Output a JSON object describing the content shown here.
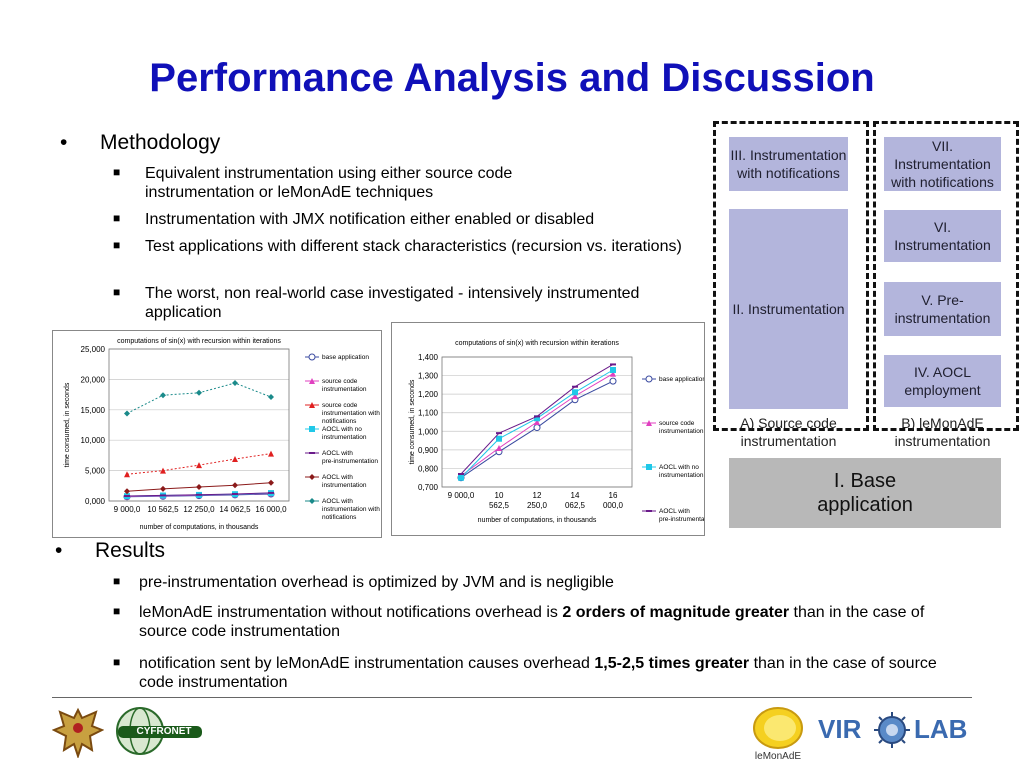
{
  "title": "Performance Analysis and Discussion",
  "methodology": {
    "heading": "Methodology",
    "items": [
      "Equivalent instrumentation using either source code instrumentation or leMonAdE techniques",
      "Instrumentation with JMX notification either enabled or disabled",
      "Test applications with different stack characteristics (recursion vs. iterations)",
      "The worst, non real-world case investigated - intensively instrumented application"
    ]
  },
  "results": {
    "heading": "Results",
    "item1": "pre-instrumentation overhead is optimized by JVM and is negligible",
    "item2_pre": "leMonAdE instrumentation without notifications overhead is ",
    "item2_bold": "2 orders of magnitude greater",
    "item2_post": " than in the case of source code instrumentation",
    "item3_pre": "notification sent by leMonAdE instrumentation causes overhead ",
    "item3_bold": "1,5-2,5 times greater",
    "item3_post": " than in the case of source code instrumentation"
  },
  "diagram": {
    "left": {
      "box3": "III. Instrumentation with notifications",
      "box2": "II. Instrumentation",
      "caption": "A) Source code instrumentation"
    },
    "right": {
      "box7": "VII. Instrumentation with notifications",
      "box6": "VI. Instrumentation",
      "box5": "V. Pre-instrumentation",
      "box4": "IV. AOCL employment",
      "caption": "B) leMonAdE instrumentation"
    },
    "base": "I. Base application",
    "colors": {
      "box": "#b3b5dc",
      "base": "#b8b8b8"
    }
  },
  "footer": {
    "logo_text_cyfronet": "CYFRONET",
    "logo_text_lemonade": "leMonAdE",
    "logo_text_virolab_pre": "VIR",
    "logo_text_virolab_post": "LAB"
  },
  "chart_data": [
    {
      "type": "line",
      "title": "computations of sin(x) with recursion within iterations",
      "xlabel": "number of computations, in thousands",
      "ylabel": "time consumed, in seconds",
      "categories": [
        "9 000,0",
        "10 562,5",
        "12 250,0",
        "14 062,5",
        "16 000,0"
      ],
      "ylim": [
        0,
        25000
      ],
      "yticks": [
        "0,000",
        "5,000",
        "10,000",
        "15,000",
        "20,000",
        "25,000"
      ],
      "series": [
        {
          "name": "base application",
          "values": [
            700,
            780,
            880,
            1000,
            1150
          ],
          "color": "#3a4aa0",
          "marker": "circle"
        },
        {
          "name": "source code instrumentation",
          "values": [
            740,
            850,
            960,
            1080,
            1250
          ],
          "color": "#e040c0",
          "marker": "triangle"
        },
        {
          "name": "source code instrumentation with notifications",
          "values": [
            4400,
            5000,
            5900,
            6900,
            7800
          ],
          "color": "#e02020",
          "marker": "triangle"
        },
        {
          "name": "AOCL with no instrumentation",
          "values": [
            800,
            900,
            1000,
            1120,
            1300
          ],
          "color": "#20c8e8",
          "marker": "square"
        },
        {
          "name": "AOCL with pre-instrumentation",
          "values": [
            820,
            920,
            1020,
            1150,
            1330
          ],
          "color": "#6a1a8a",
          "marker": "dash"
        },
        {
          "name": "AOCL with instrumentation",
          "values": [
            1600,
            2000,
            2300,
            2600,
            3000
          ],
          "color": "#8b1a1a",
          "marker": "diamond"
        },
        {
          "name": "AOCL with instrumentation with notifications",
          "values": [
            14400,
            17400,
            17800,
            19400,
            17100
          ],
          "color": "#1a8a8a",
          "marker": "diamond"
        }
      ]
    },
    {
      "type": "line",
      "title": "computations of sin(x) with recursion within iterations",
      "xlabel": "number of computations, in thousands",
      "ylabel": "time consumed, in seconds",
      "categories": [
        "9 000,0",
        "10 562,5",
        "12 250,0",
        "14 062,5",
        "16 000,0"
      ],
      "ylim": [
        0.7,
        1.4
      ],
      "yticks": [
        "0,700",
        "0,800",
        "0,900",
        "1,000",
        "1,100",
        "1,200",
        "1,300",
        "1,400"
      ],
      "series": [
        {
          "name": "base application",
          "values": [
            0.75,
            0.89,
            1.02,
            1.17,
            1.27
          ],
          "color": "#3a4aa0",
          "marker": "circle"
        },
        {
          "name": "source code instrumentation",
          "values": [
            0.76,
            0.91,
            1.05,
            1.19,
            1.31
          ],
          "color": "#e040c0",
          "marker": "triangle"
        },
        {
          "name": "AOCL with no instrumentation",
          "values": [
            0.75,
            0.96,
            1.07,
            1.21,
            1.33
          ],
          "color": "#20c8e8",
          "marker": "square"
        },
        {
          "name": "AOCL with pre-instrumentation",
          "values": [
            0.77,
            0.99,
            1.08,
            1.24,
            1.36
          ],
          "color": "#6a1a8a",
          "marker": "dash"
        }
      ]
    }
  ]
}
